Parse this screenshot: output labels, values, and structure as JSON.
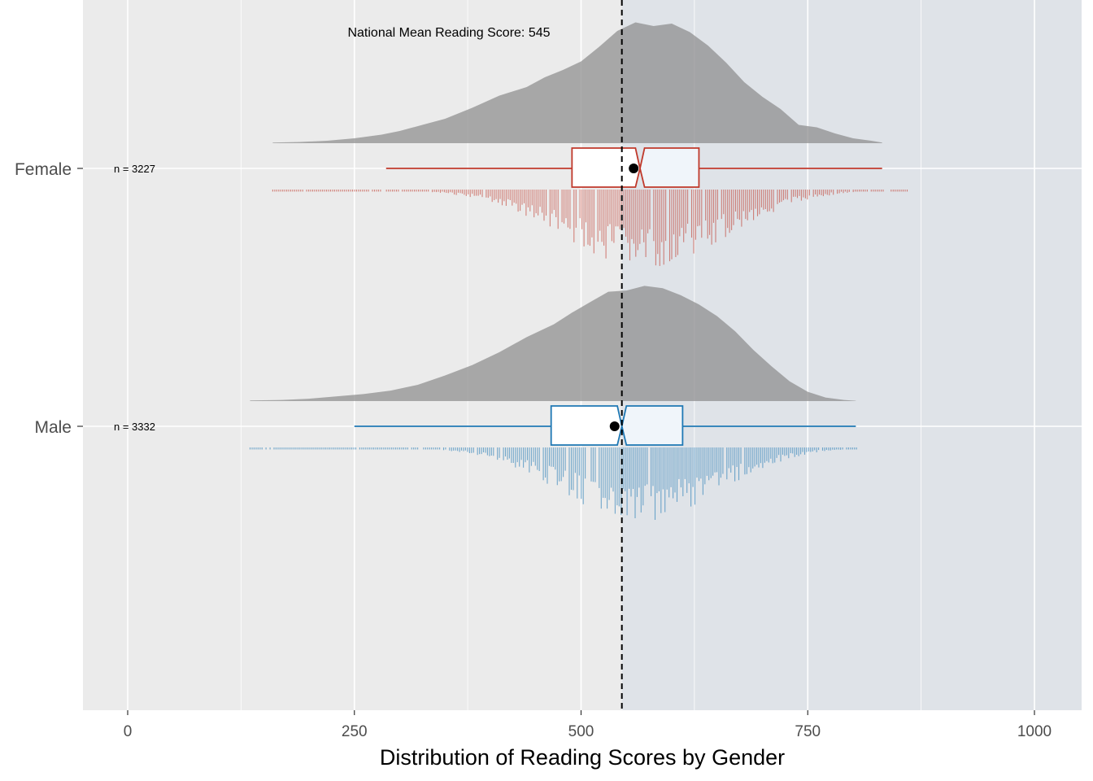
{
  "chart_data": {
    "type": "raincloud",
    "title": "",
    "xlabel": "Distribution of Reading Scores by Gender",
    "ylabel": "",
    "xlim": [
      -50,
      1025
    ],
    "x_ticks": [
      0,
      250,
      500,
      750,
      1000
    ],
    "x_tick_labels": [
      "0",
      "250",
      "500",
      "750",
      "1000"
    ],
    "categories": [
      "Female",
      "Male"
    ],
    "reference_line": {
      "value": 545,
      "label": "National Mean Reading Score: 545",
      "style": "dashed"
    },
    "shaded_region": {
      "from": 545,
      "to": 1025,
      "color": "#dfe3e8"
    },
    "grid": true,
    "series": [
      {
        "category": "Female",
        "n_label": "n = 3227",
        "color": "#c0392b",
        "box_fill_left": "#ffffff",
        "box_fill_right": "#f0f5fa",
        "whisker_low": 285,
        "q1": 490,
        "median": 565,
        "q3": 630,
        "whisker_high": 832,
        "notch_low": 560,
        "notch_high": 570,
        "mean": 558,
        "density_range": [
          160,
          832
        ],
        "density": [
          [
            160,
            0.005
          ],
          [
            190,
            0.01
          ],
          [
            220,
            0.02
          ],
          [
            250,
            0.04
          ],
          [
            280,
            0.07
          ],
          [
            300,
            0.1
          ],
          [
            325,
            0.15
          ],
          [
            350,
            0.2
          ],
          [
            380,
            0.29
          ],
          [
            410,
            0.39
          ],
          [
            440,
            0.46
          ],
          [
            460,
            0.54
          ],
          [
            480,
            0.6
          ],
          [
            500,
            0.67
          ],
          [
            520,
            0.79
          ],
          [
            540,
            0.92
          ],
          [
            560,
            0.99
          ],
          [
            580,
            0.96
          ],
          [
            600,
            0.98
          ],
          [
            620,
            0.91
          ],
          [
            640,
            0.8
          ],
          [
            660,
            0.66
          ],
          [
            680,
            0.5
          ],
          [
            700,
            0.38
          ],
          [
            720,
            0.28
          ],
          [
            740,
            0.15
          ],
          [
            760,
            0.13
          ],
          [
            780,
            0.08
          ],
          [
            800,
            0.04
          ],
          [
            820,
            0.02
          ],
          [
            832,
            0.005
          ]
        ],
        "rug_range": [
          160,
          860
        ],
        "rug_peak": 570,
        "rug_spread": 90
      },
      {
        "category": "Male",
        "n_label": "n = 3332",
        "color": "#1f78b4",
        "box_fill_left": "#ffffff",
        "box_fill_right": "#f0f5fa",
        "whisker_low": 250,
        "q1": 467,
        "median": 545,
        "q3": 612,
        "whisker_high": 803,
        "notch_low": 540,
        "notch_high": 550,
        "mean": 537,
        "density_range": [
          135,
          803
        ],
        "density": [
          [
            135,
            0.005
          ],
          [
            170,
            0.01
          ],
          [
            200,
            0.02
          ],
          [
            230,
            0.04
          ],
          [
            260,
            0.06
          ],
          [
            290,
            0.09
          ],
          [
            320,
            0.14
          ],
          [
            350,
            0.22
          ],
          [
            380,
            0.31
          ],
          [
            410,
            0.42
          ],
          [
            440,
            0.55
          ],
          [
            470,
            0.66
          ],
          [
            490,
            0.76
          ],
          [
            510,
            0.85
          ],
          [
            530,
            0.94
          ],
          [
            550,
            0.95
          ],
          [
            570,
            0.99
          ],
          [
            590,
            0.97
          ],
          [
            610,
            0.91
          ],
          [
            630,
            0.83
          ],
          [
            650,
            0.73
          ],
          [
            670,
            0.6
          ],
          [
            690,
            0.44
          ],
          [
            710,
            0.3
          ],
          [
            730,
            0.17
          ],
          [
            750,
            0.08
          ],
          [
            770,
            0.03
          ],
          [
            790,
            0.01
          ],
          [
            803,
            0.003
          ]
        ],
        "rug_range": [
          135,
          805
        ],
        "rug_peak": 565,
        "rug_spread": 85
      }
    ]
  }
}
